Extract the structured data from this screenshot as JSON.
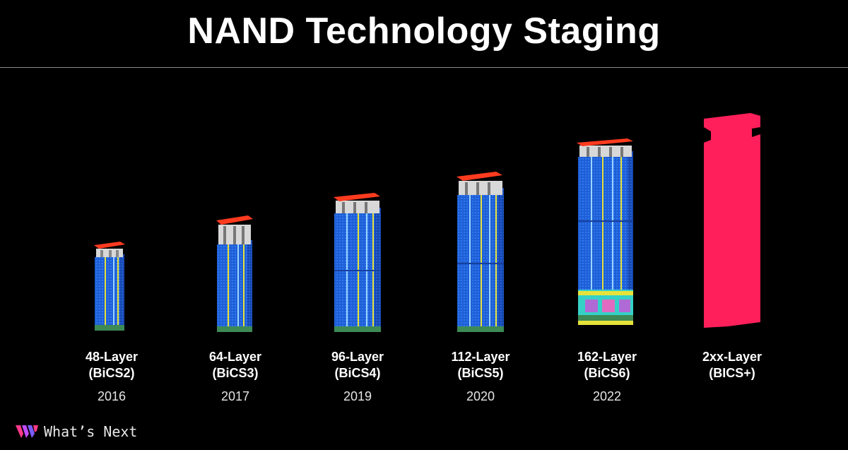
{
  "title": "NAND Technology Staging",
  "footer": {
    "text": "What’s Next",
    "logo_icon": "whats-next-logo-icon"
  },
  "colors": {
    "background": "#000000",
    "cell_blue": "#1f5fd6",
    "top_red": "#ff3b1f",
    "future_pink": "#ff1f5a",
    "accent_yellow": "#e7e23a",
    "accent_cyan": "#35d1c7"
  },
  "generations": [
    {
      "layers": "48-Layer",
      "name": "(BiCS2)",
      "year": "2016"
    },
    {
      "layers": "64-Layer",
      "name": "(BiCS3)",
      "year": "2017"
    },
    {
      "layers": "96-Layer",
      "name": "(BiCS4)",
      "year": "2019"
    },
    {
      "layers": "112-Layer",
      "name": "(BiCS5)",
      "year": "2020"
    },
    {
      "layers": "162-Layer",
      "name": "(BiCS6)",
      "year": "2022"
    },
    {
      "layers": "2xx-Layer",
      "name": "(BICS+)",
      "year": ""
    }
  ]
}
